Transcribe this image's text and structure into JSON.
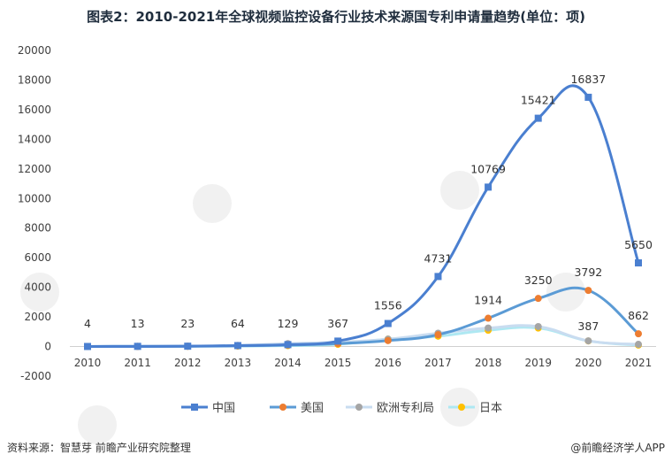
{
  "title": "图表2：2010-2021年全球视频监控设备行业技术来源国专利申请量趋势(单位：项)",
  "footer": {
    "source": "资料来源：智慧芽 前瞻产业研究院整理",
    "brand": "@前瞻经济学人APP"
  },
  "chart_data": {
    "type": "line",
    "title": "图表2：2010-2021年全球视频监控设备行业技术来源国专利申请量趋势(单位：项)",
    "categories": [
      "2010",
      "2011",
      "2012",
      "2013",
      "2014",
      "2015",
      "2016",
      "2017",
      "2018",
      "2019",
      "2020",
      "2021"
    ],
    "ylim": [
      -2000,
      20000
    ],
    "yticks": [
      -2000,
      0,
      2000,
      4000,
      6000,
      8000,
      10000,
      12000,
      14000,
      16000,
      18000,
      20000
    ],
    "grid": false,
    "legend_position": "bottom",
    "series": [
      {
        "name": "中国",
        "color": "#4a7fd0",
        "marker": "square",
        "values": [
          4,
          13,
          23,
          64,
          129,
          367,
          1556,
          4731,
          10769,
          15421,
          16837,
          5650
        ],
        "labels": [
          "4",
          "13",
          "23",
          "64",
          "129",
          "367",
          "1556",
          "4731",
          "10769",
          "15421",
          "16837",
          "5650"
        ]
      },
      {
        "name": "美国",
        "color": "#5b9bd5",
        "marker": "circle",
        "markerColor": "#ed7d31",
        "values": [
          5,
          10,
          20,
          50,
          100,
          200,
          400,
          800,
          1914,
          3250,
          3792,
          862
        ],
        "labels": [
          null,
          null,
          null,
          null,
          null,
          null,
          null,
          null,
          "1914",
          "3250",
          "3792",
          "862"
        ]
      },
      {
        "name": "欧洲专利局",
        "color": "#c9dcf0",
        "marker": "circle",
        "markerColor": "#a5a5a5",
        "values": [
          5,
          10,
          20,
          80,
          200,
          300,
          500,
          900,
          1250,
          1350,
          387,
          150
        ],
        "labels": [
          null,
          null,
          null,
          null,
          null,
          null,
          null,
          null,
          null,
          null,
          "387",
          null
        ]
      },
      {
        "name": "日本",
        "color": "#aee8f2",
        "marker": "circle",
        "markerColor": "#ffc000",
        "values": [
          5,
          10,
          15,
          30,
          60,
          150,
          500,
          700,
          1100,
          1250,
          380,
          100
        ],
        "labels": [
          null,
          null,
          null,
          null,
          null,
          null,
          null,
          null,
          null,
          null,
          null,
          null
        ]
      }
    ]
  }
}
